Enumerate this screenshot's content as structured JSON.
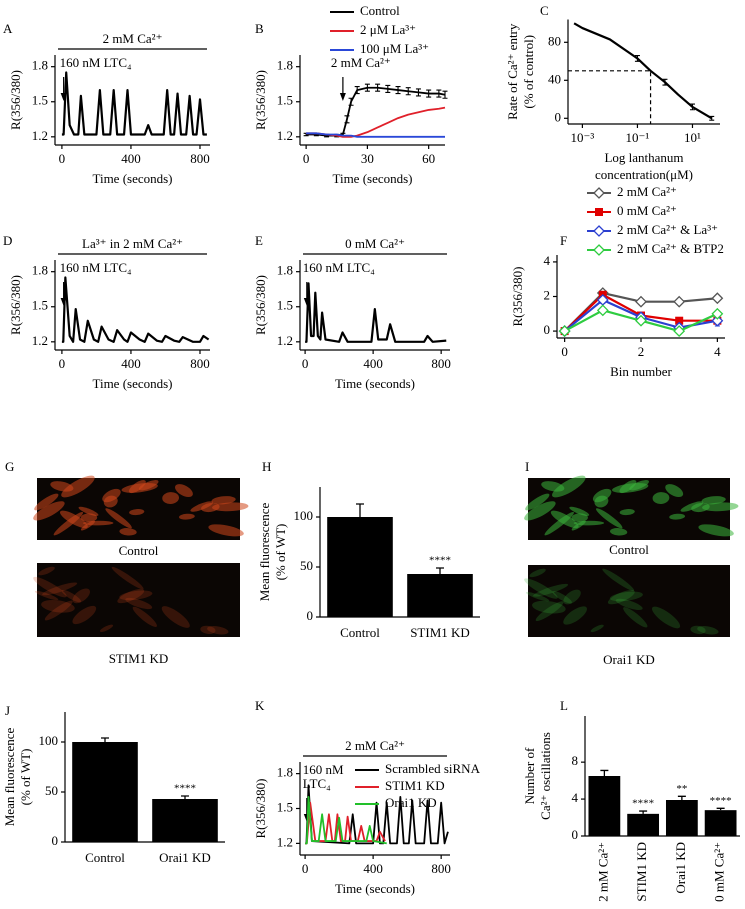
{
  "chart_data": [
    {
      "type": "line",
      "panel": "A",
      "bar_label": "2 mM Ca²⁺",
      "stimulus_label": [
        "160 nM LTC₄"
      ],
      "stimulus_x": 10,
      "ylabel": [
        "R(356/380)"
      ],
      "xlabel": [
        "Time (seconds)"
      ],
      "x": [
        0,
        10,
        25,
        45,
        70,
        95,
        110,
        130,
        200,
        220,
        240,
        280,
        300,
        320,
        360,
        380,
        400,
        480,
        500,
        520,
        590,
        610,
        630,
        650,
        670,
        690,
        720,
        740,
        760,
        780,
        800,
        820,
        840
      ],
      "values": [
        1.22,
        1.22,
        1.75,
        1.3,
        1.22,
        1.22,
        1.55,
        1.22,
        1.22,
        1.6,
        1.22,
        1.22,
        1.6,
        1.22,
        1.22,
        1.6,
        1.22,
        1.22,
        1.3,
        1.22,
        1.22,
        1.6,
        1.22,
        1.22,
        1.57,
        1.22,
        1.22,
        1.55,
        1.22,
        1.22,
        1.52,
        1.22,
        1.22
      ],
      "color": "#000000",
      "xlim": [
        -40,
        858
      ],
      "ylim": [
        1.13,
        1.9
      ],
      "xticks": [
        0,
        400,
        800
      ],
      "yticks": [
        1.2,
        1.5,
        1.8
      ]
    },
    {
      "type": "line",
      "panel": "B",
      "stimulus_label": [
        "2 mM Ca²⁺"
      ],
      "stimulus_x": 18,
      "ylabel": [
        "R(356/380)"
      ],
      "xlabel": [
        "Time (seconds)"
      ],
      "legend": "top",
      "x": [
        0,
        5,
        10,
        15,
        18,
        20,
        22,
        25,
        30,
        35,
        40,
        45,
        50,
        55,
        60,
        65,
        68
      ],
      "series": [
        {
          "name": "Control",
          "color": "#000000",
          "values": [
            1.22,
            1.22,
            1.21,
            1.21,
            1.22,
            1.35,
            1.5,
            1.6,
            1.62,
            1.62,
            1.61,
            1.6,
            1.59,
            1.58,
            1.57,
            1.57,
            1.56
          ],
          "errors": [
            0.01,
            0.01,
            0.01,
            0.01,
            0.01,
            0.03,
            0.03,
            0.03,
            0.03,
            0.03,
            0.03,
            0.03,
            0.03,
            0.03,
            0.03,
            0.03,
            0.03
          ]
        },
        {
          "name": "2 μM La³⁺",
          "color": "#e0202a",
          "values": [
            1.23,
            1.23,
            1.22,
            1.21,
            1.2,
            1.2,
            1.2,
            1.21,
            1.24,
            1.28,
            1.32,
            1.36,
            1.39,
            1.41,
            1.43,
            1.44,
            1.45
          ]
        },
        {
          "name": "100 μM La³⁺",
          "color": "#2a48d8",
          "values": [
            1.23,
            1.23,
            1.22,
            1.22,
            1.21,
            1.21,
            1.21,
            1.2,
            1.2,
            1.2,
            1.2,
            1.2,
            1.2,
            1.2,
            1.2,
            1.2,
            1.2
          ]
        }
      ],
      "xlim": [
        -3,
        68
      ],
      "ylim": [
        1.13,
        1.9
      ],
      "xticks": [
        0,
        30,
        60
      ],
      "yticks": [
        1.2,
        1.5,
        1.8
      ]
    },
    {
      "type": "line",
      "panel": "C",
      "ylabel": [
        "Rate of Ca²⁺ entry",
        "(% of control)"
      ],
      "xlabel": [
        "Log lanthanum",
        "concentration(μM)"
      ],
      "xscale": "log",
      "x": [
        0.0005,
        0.001,
        0.01,
        0.1,
        0.3,
        1,
        3,
        10,
        50
      ],
      "values": [
        100,
        95,
        83,
        63,
        50,
        38,
        25,
        12,
        0
      ],
      "errors": [
        null,
        null,
        null,
        3,
        null,
        3,
        null,
        3,
        2
      ],
      "reference": {
        "x": 0.3,
        "y": 50
      },
      "color": "#000000",
      "xlim": [
        0.0003,
        100
      ],
      "ylim": [
        -6,
        104
      ],
      "xticks": [
        {
          "value": 0.001,
          "label": "10⁻³"
        },
        {
          "value": 0.1,
          "label": "10⁻¹"
        },
        {
          "value": 10,
          "label": "10¹"
        }
      ],
      "yticks": [
        0,
        40,
        80
      ]
    },
    {
      "type": "line",
      "panel": "D",
      "bar_label": "La³⁺ in 2 mM Ca²⁺",
      "stimulus_label": [
        "160 nM LTC₄"
      ],
      "stimulus_x": 10,
      "ylabel": [
        "R(356/380)"
      ],
      "xlabel": [
        "Time (seconds)"
      ],
      "x": [
        0,
        8,
        20,
        45,
        65,
        80,
        105,
        130,
        150,
        185,
        210,
        230,
        270,
        300,
        320,
        360,
        380,
        400,
        450,
        480,
        500,
        550,
        580,
        600,
        650,
        680,
        700,
        760,
        800,
        820,
        850
      ],
      "values": [
        1.2,
        1.2,
        1.75,
        1.25,
        1.2,
        1.48,
        1.22,
        1.2,
        1.38,
        1.22,
        1.2,
        1.33,
        1.22,
        1.2,
        1.3,
        1.22,
        1.2,
        1.28,
        1.22,
        1.2,
        1.27,
        1.21,
        1.2,
        1.25,
        1.21,
        1.2,
        1.24,
        1.2,
        1.2,
        1.25,
        1.22
      ],
      "color": "#000000",
      "xlim": [
        -40,
        858
      ],
      "ylim": [
        1.13,
        1.9
      ],
      "xticks": [
        0,
        400,
        800
      ],
      "yticks": [
        1.2,
        1.5,
        1.8
      ]
    },
    {
      "type": "line",
      "panel": "E",
      "bar_label": "0 mM Ca²⁺",
      "stimulus_label": [
        "160 nM LTC₄"
      ],
      "stimulus_x": 10,
      "ylabel": [
        "R(356/380)"
      ],
      "xlabel": [
        "Time (seconds)"
      ],
      "x": [
        0,
        8,
        20,
        35,
        50,
        60,
        75,
        90,
        100,
        120,
        200,
        220,
        250,
        390,
        410,
        430,
        480,
        500,
        530,
        700,
        720,
        750,
        830
      ],
      "values": [
        1.2,
        1.2,
        1.7,
        1.25,
        1.25,
        1.62,
        1.25,
        1.22,
        1.45,
        1.22,
        1.2,
        1.28,
        1.2,
        1.2,
        1.48,
        1.22,
        1.22,
        1.35,
        1.2,
        1.2,
        1.25,
        1.2,
        1.21
      ],
      "color": "#000000",
      "xlim": [
        -30,
        852
      ],
      "ylim": [
        1.13,
        1.9
      ],
      "xticks": [
        0,
        400,
        800
      ],
      "yticks": [
        1.2,
        1.5,
        1.8
      ]
    },
    {
      "type": "line",
      "panel": "F",
      "ylabel": [
        "R(356/380)"
      ],
      "xlabel": [
        "Bin number"
      ],
      "legend": "top",
      "x": [
        0,
        1,
        2,
        3,
        4
      ],
      "series": [
        {
          "name": "2 mM Ca²⁺",
          "color": "#555555",
          "marker": "diamond",
          "values": [
            0,
            2.2,
            1.7,
            1.7,
            1.9
          ]
        },
        {
          "name": "0 mM Ca²⁺",
          "color": "#e00000",
          "marker": "square",
          "values": [
            0,
            2.1,
            0.9,
            0.6,
            0.6
          ]
        },
        {
          "name": "2 mM Ca²⁺ & La³⁺",
          "color": "#2b3fd0",
          "marker": "diamond",
          "values": [
            0,
            1.8,
            0.8,
            0.2,
            0.6
          ],
          "errors": [
            null,
            0.2,
            0.2,
            0.2,
            0.3
          ]
        },
        {
          "name": "2 mM Ca²⁺ & BTP2",
          "color": "#2ecc40",
          "marker": "diamond",
          "values": [
            0,
            1.2,
            0.6,
            0,
            1.0
          ]
        }
      ],
      "xlim": [
        -0.2,
        4.2
      ],
      "ylim": [
        -0.4,
        4.4
      ],
      "xticks": [
        0,
        2,
        4
      ],
      "yticks": [
        0,
        2,
        4
      ]
    },
    {
      "type": "image",
      "panel": "G",
      "captions": [
        "Control",
        "STIM1 KD"
      ],
      "color": "#d0471c"
    },
    {
      "type": "bar",
      "panel": "H",
      "ylabel": [
        "Mean fluorescence",
        "(% of WT)"
      ],
      "categories": [
        "Control",
        "STIM1 KD"
      ],
      "values": [
        100,
        43
      ],
      "errors": [
        13,
        6
      ],
      "stars": [
        null,
        "****"
      ],
      "color": "#000000",
      "ylim": [
        0,
        130
      ],
      "yticks": [
        0,
        50,
        100
      ]
    },
    {
      "type": "image",
      "panel": "I",
      "captions": [
        "Control",
        "Orai1 KD"
      ],
      "color": "#3cb43c"
    },
    {
      "type": "bar",
      "panel": "J",
      "ylabel": [
        "Mean fluorescence",
        "(% of WT)"
      ],
      "categories": [
        "Control",
        "Orai1 KD"
      ],
      "values": [
        100,
        43
      ],
      "errors": [
        4,
        3
      ],
      "stars": [
        null,
        "****"
      ],
      "color": "#000000",
      "ylim": [
        0,
        130
      ],
      "yticks": [
        0,
        50,
        100
      ]
    },
    {
      "type": "line",
      "panel": "K",
      "bar_label": "2 mM Ca²⁺",
      "stimulus_label": [
        "160 nM",
        "LTC₄"
      ],
      "stimulus_x": 10,
      "ylabel": [
        "R(356/380)"
      ],
      "xlabel": [
        "Time (seconds)"
      ],
      "legend": "top-right",
      "series": [
        {
          "name": "Scrambled siRNA",
          "color": "#000000",
          "x": [
            0,
            8,
            20,
            40,
            260,
            280,
            300,
            400,
            420,
            440,
            460,
            480,
            500,
            540,
            560,
            580,
            610,
            630,
            650,
            700,
            720,
            740,
            780,
            800,
            820,
            840
          ],
          "values": [
            1.2,
            1.2,
            1.7,
            1.22,
            1.2,
            1.45,
            1.2,
            1.2,
            1.55,
            1.2,
            1.2,
            1.55,
            1.2,
            1.2,
            1.6,
            1.2,
            1.2,
            1.57,
            1.2,
            1.2,
            1.57,
            1.2,
            1.2,
            1.55,
            1.2,
            1.3
          ]
        },
        {
          "name": "STIM1 KD",
          "color": "#e0202a",
          "x": [
            0,
            10,
            30,
            60,
            120,
            140,
            160,
            175,
            190,
            210,
            235,
            250,
            270,
            310,
            330,
            350,
            420,
            440,
            470
          ],
          "values": [
            1.2,
            1.2,
            1.55,
            1.22,
            1.22,
            1.45,
            1.22,
            1.22,
            1.45,
            1.22,
            1.22,
            1.43,
            1.22,
            1.22,
            1.35,
            1.22,
            1.22,
            1.3,
            1.22
          ]
        },
        {
          "name": "Orai1 KD",
          "color": "#22c02a",
          "x": [
            0,
            10,
            20,
            40,
            80,
            100,
            120,
            180,
            200,
            220,
            360,
            380,
            400,
            480
          ],
          "values": [
            1.2,
            1.2,
            1.6,
            1.22,
            1.22,
            1.45,
            1.22,
            1.22,
            1.42,
            1.22,
            1.22,
            1.35,
            1.22,
            1.2
          ]
        }
      ],
      "xlim": [
        -30,
        852
      ],
      "ylim": [
        1.1,
        1.9
      ],
      "xticks": [
        0,
        400,
        800
      ],
      "yticks": [
        1.2,
        1.5,
        1.8
      ]
    },
    {
      "type": "bar",
      "panel": "L",
      "ylabel": [
        "Number of",
        "Ca²⁺ oscillations"
      ],
      "categories": [
        "2 mM Ca²⁺",
        "STIM1 KD",
        "Orai1 KD",
        "0 mM Ca²⁺"
      ],
      "values": [
        6.5,
        2.4,
        3.9,
        2.8
      ],
      "errors": [
        0.6,
        0.3,
        0.4,
        0.2
      ],
      "stars": [
        null,
        "****",
        "**",
        "****"
      ],
      "rotate_labels": true,
      "color": "#000000",
      "ylim": [
        0,
        13
      ],
      "yticks": [
        0,
        4,
        8
      ]
    }
  ]
}
